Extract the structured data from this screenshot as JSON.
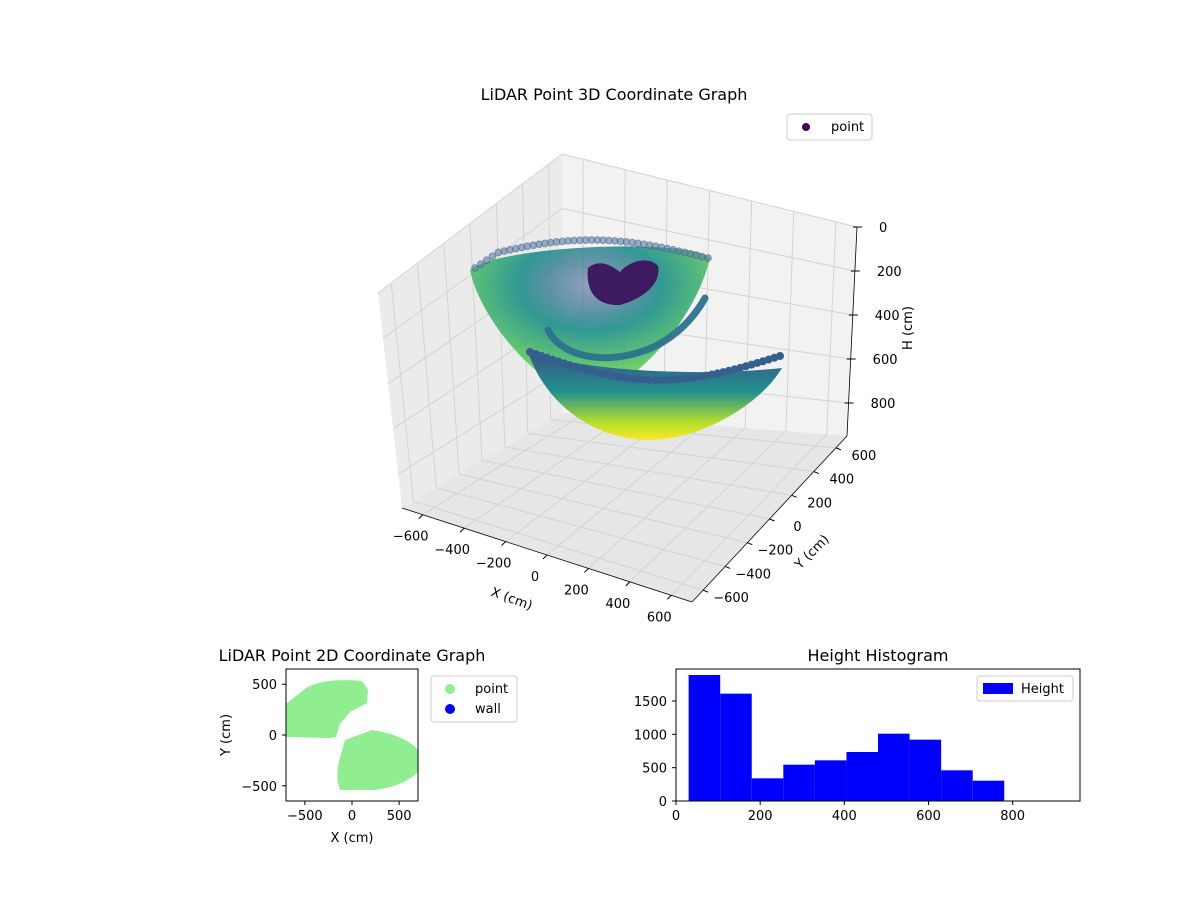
{
  "colors": {
    "pane": "#f2f2f2",
    "pane_side": "#ebebeb",
    "grid": "#d6d6d6",
    "point_2d": "#90ee90",
    "wall_2d": "#0000ff",
    "histogram": "#0000ff",
    "legend_point_3d": "#440154"
  },
  "chart_data": [
    {
      "type": "scatter3d",
      "title": "LiDAR Point 3D Coordinate Graph",
      "xlabel": "X (cm)",
      "ylabel": "Y (cm)",
      "zlabel": "H (cm)",
      "xlim": [
        -700,
        700
      ],
      "ylim": [
        -700,
        700
      ],
      "zlim": [
        0,
        950
      ],
      "z_inverted": true,
      "xticks": [
        "−600",
        "−400",
        "−200",
        "0",
        "200",
        "400",
        "600"
      ],
      "yticks": [
        "−600",
        "−400",
        "−200",
        "0",
        "200",
        "400",
        "600"
      ],
      "zticks": [
        "0",
        "200",
        "400",
        "600",
        "800"
      ],
      "legend": {
        "position": "top-right",
        "entries": [
          "point"
        ]
      },
      "colormap": "viridis",
      "series": [
        {
          "name": "point",
          "shape": "paraboloid bowl of points, colored by height (purple near 0 cm, yellow near 900 cm)"
        }
      ]
    },
    {
      "type": "scatter",
      "title": "LiDAR Point 2D Coordinate Graph",
      "xlabel": "X (cm)",
      "ylabel": "Y (cm)",
      "xlim": [
        -700,
        700
      ],
      "ylim": [
        -650,
        650
      ],
      "xticks": [
        "−500",
        "0",
        "500"
      ],
      "yticks": [
        "−500",
        "0",
        "500"
      ],
      "legend": {
        "position": "outside-right",
        "entries": [
          "point",
          "wall"
        ]
      },
      "series": [
        {
          "name": "point",
          "region": "two-lobed top-down footprint (upper-left and lower-right sectors)"
        },
        {
          "name": "wall",
          "points": []
        }
      ]
    },
    {
      "type": "bar",
      "title": "Height Histogram",
      "xlabel": "",
      "ylabel": "",
      "xlim": [
        0,
        960
      ],
      "ylim": [
        0,
        1980
      ],
      "xticks": [
        "0",
        "200",
        "400",
        "600",
        "800"
      ],
      "yticks": [
        "0",
        "500",
        "1000",
        "1500"
      ],
      "legend": {
        "position": "top-right",
        "entries": [
          "Height"
        ]
      },
      "bins": [
        {
          "from": 30,
          "to": 105,
          "count": 1890
        },
        {
          "from": 105,
          "to": 180,
          "count": 1610
        },
        {
          "from": 180,
          "to": 255,
          "count": 340
        },
        {
          "from": 255,
          "to": 330,
          "count": 545
        },
        {
          "from": 330,
          "to": 405,
          "count": 610
        },
        {
          "from": 405,
          "to": 480,
          "count": 735
        },
        {
          "from": 480,
          "to": 555,
          "count": 1010
        },
        {
          "from": 555,
          "to": 630,
          "count": 920
        },
        {
          "from": 630,
          "to": 705,
          "count": 460
        },
        {
          "from": 705,
          "to": 780,
          "count": 305
        }
      ]
    }
  ]
}
